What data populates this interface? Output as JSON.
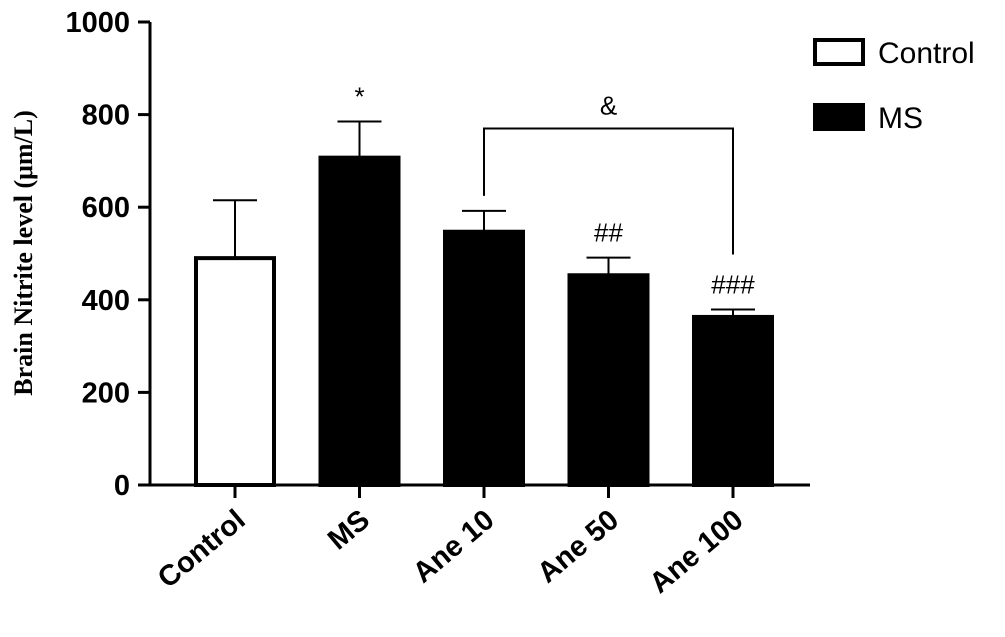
{
  "chart_data": {
    "type": "bar",
    "ylabel": "Brain Nitrite level (μm/L)",
    "ylim": [
      0,
      1000
    ],
    "yticks": [
      0,
      200,
      400,
      600,
      800,
      1000
    ],
    "categories": [
      "Control",
      "MS",
      "Ane 10",
      "Ane 50",
      "Ane 100"
    ],
    "values": [
      490,
      707,
      547,
      453,
      363
    ],
    "errors": [
      125,
      78,
      45,
      38,
      16
    ],
    "bar_fill": [
      "Control",
      "MS",
      "MS",
      "MS",
      "MS"
    ],
    "annotations": [
      "",
      "*",
      "",
      "##",
      "###"
    ],
    "bracket": {
      "from": "Ane 10",
      "to": "Ane 100",
      "label": "&",
      "y": 770
    },
    "legend": {
      "position": "top-right",
      "entries": [
        {
          "name": "Control",
          "fill": "#ffffff"
        },
        {
          "name": "MS",
          "fill": "#000000"
        }
      ]
    },
    "grid": false,
    "colors": {
      "stroke": "#000000",
      "filled": "#000000",
      "open": "#ffffff"
    }
  }
}
